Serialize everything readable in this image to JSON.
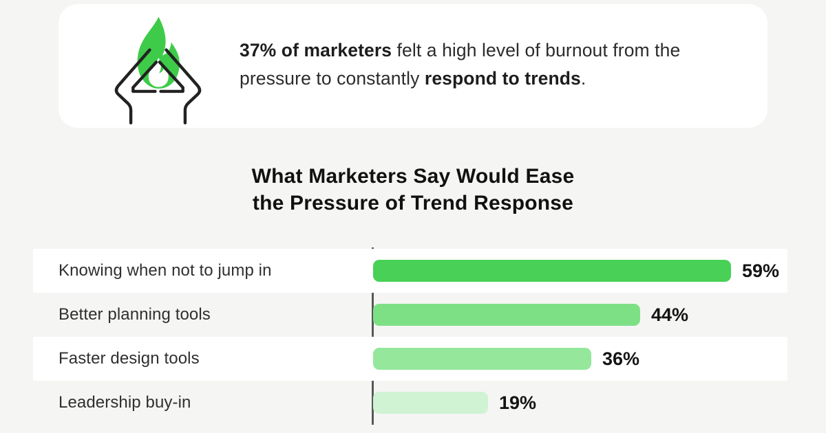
{
  "page": {
    "background": "#f5f5f3"
  },
  "header_card": {
    "icon": "burnout-flame-head-icon",
    "flame_color": "#3ecb49",
    "arm_color": "#222222",
    "text_segments": [
      {
        "text": "37% of marketers",
        "bold": true
      },
      {
        "text": " felt a high level of burnout from the pressure to constantly ",
        "bold": false
      },
      {
        "text": "respond to trends",
        "bold": true
      },
      {
        "text": ".",
        "bold": false
      }
    ]
  },
  "chart_data": {
    "type": "bar",
    "orientation": "horizontal",
    "title": "What Marketers Say Would Ease the Pressure of Trend Response",
    "title_lines": [
      "What Marketers Say Would Ease",
      "the Pressure of Trend Response"
    ],
    "categories": [
      "Knowing when not to jump in",
      "Better planning tools",
      "Faster design tools",
      "Leadership buy-in"
    ],
    "values": [
      59,
      44,
      36,
      19
    ],
    "value_labels": [
      "59%",
      "44%",
      "36%",
      "19%"
    ],
    "bar_colors": [
      "#48d156",
      "#7de085",
      "#94e79b",
      "#cff3d3"
    ],
    "row_stripes": [
      "#ffffff",
      "transparent",
      "#ffffff",
      "transparent"
    ],
    "axis_color": "#58585a",
    "xlabel": "",
    "ylabel": "",
    "xlim": [
      0,
      66
    ],
    "grid": false,
    "legend": false,
    "data_labels": true
  }
}
